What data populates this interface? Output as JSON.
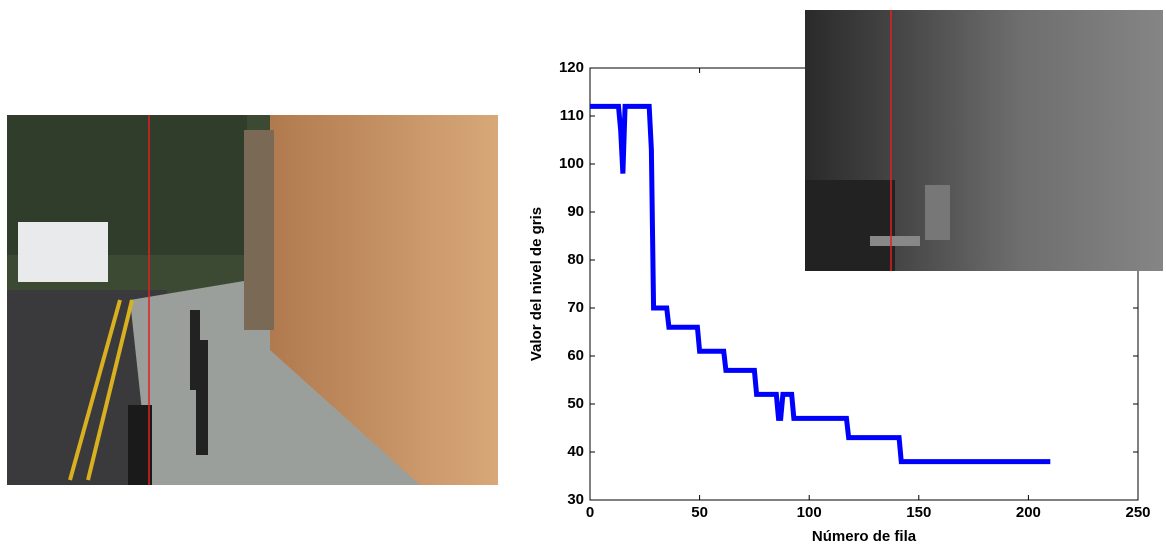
{
  "chart_data": {
    "type": "line",
    "x_label": "Número de fila",
    "y_label": "Valor del nivel de gris",
    "x": [
      0,
      13,
      14,
      15,
      16,
      27,
      28,
      29,
      35,
      36,
      49,
      50,
      61,
      62,
      75,
      76,
      85,
      86,
      87,
      88,
      92,
      93,
      117,
      118,
      141,
      142,
      210
    ],
    "values": [
      112,
      112,
      107,
      98,
      112,
      112,
      103,
      70,
      70,
      66,
      66,
      61,
      61,
      57,
      57,
      52,
      52,
      47,
      47,
      52,
      52,
      47,
      47,
      43,
      43,
      38,
      38
    ],
    "color": "#0000ff",
    "xlim": [
      0,
      250
    ],
    "xticks": [
      0,
      50,
      100,
      150,
      200,
      250
    ],
    "ylim": [
      30,
      120
    ],
    "yticks": [
      30,
      40,
      50,
      60,
      70,
      80,
      90,
      100,
      110,
      120
    ],
    "grid": false
  }
}
